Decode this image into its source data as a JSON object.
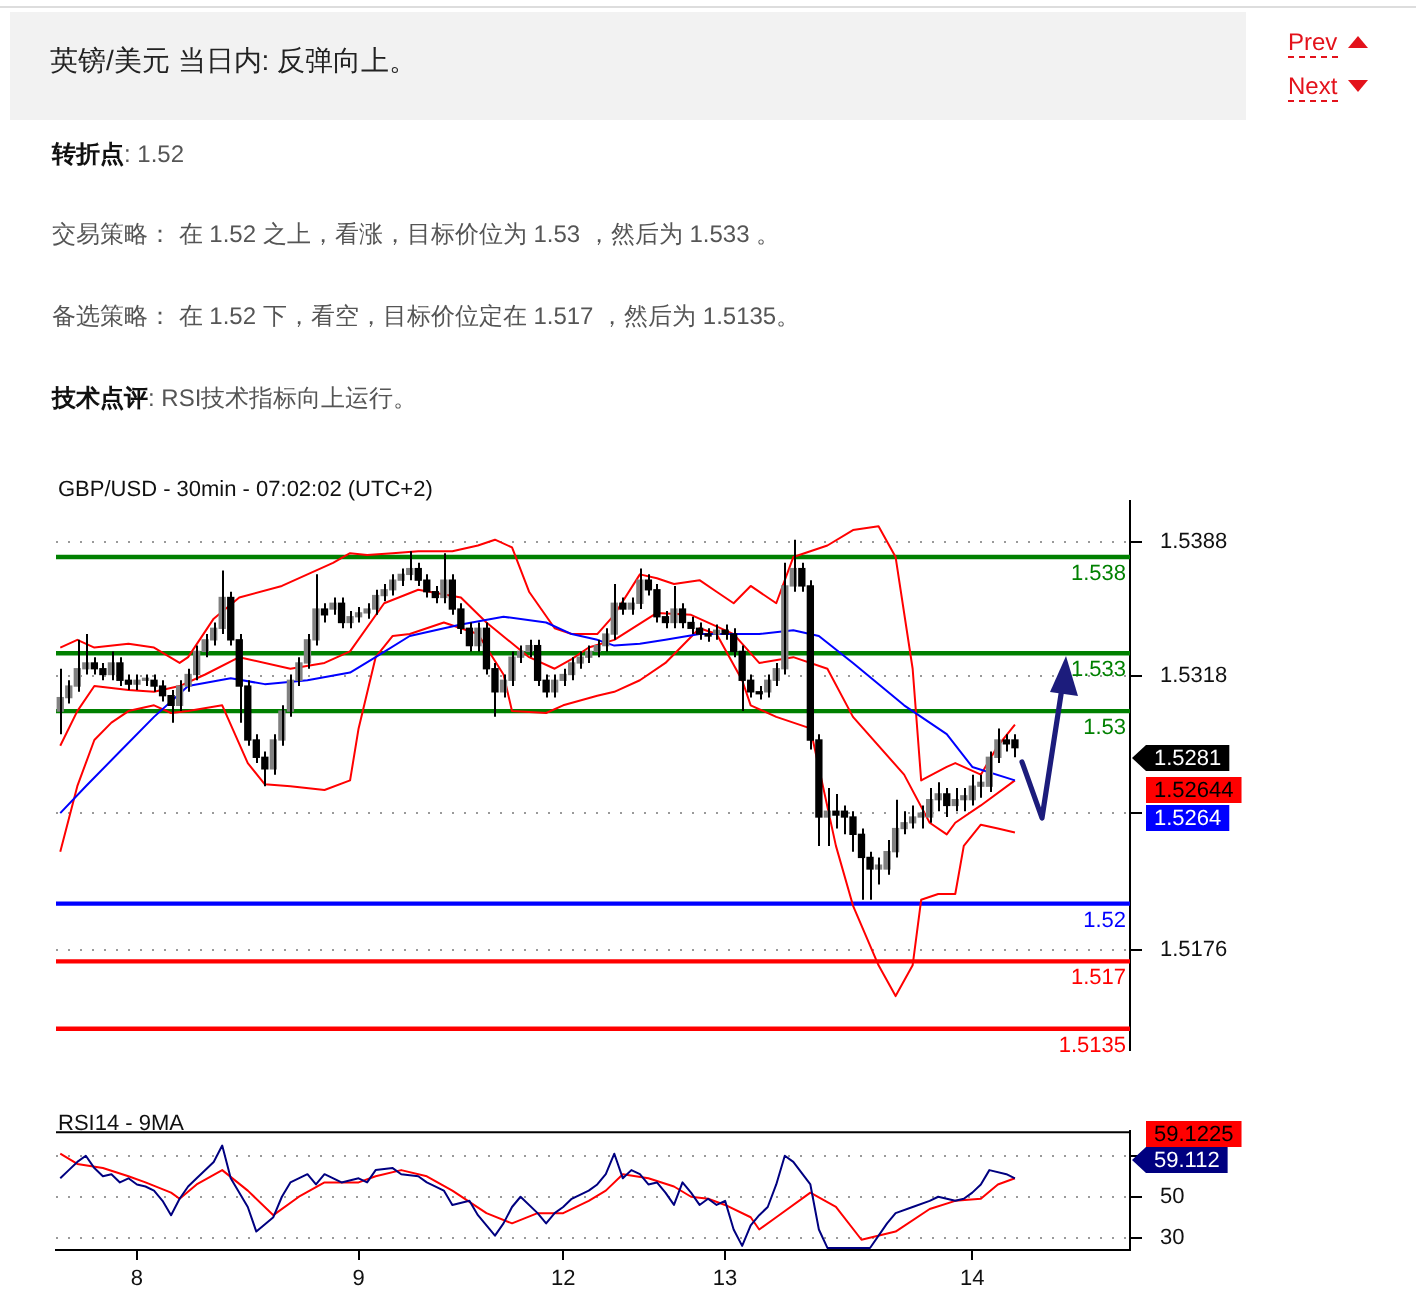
{
  "chart_data": [
    {
      "type": "candlestick",
      "title": "英镑/美元 当日内: 反弹向上。",
      "subtitle": "GBP/USD - 30min - 07:02:02 (UTC+2)",
      "annotations": [
        "Prev",
        "Next",
        "转折点: 1.52",
        "交易策略： 在 1.52 之上，看涨，目标价位为 1.53 ，然后为 1.533 。",
        "备选策略： 在 1.52 下，看空，目标价位定在 1.517 ，然后为 1.5135。",
        "技术点评: RSI技术指标向上运行。",
        "1.5281",
        "1.52644",
        "1.5264"
      ],
      "color": "#000000",
      "colors": [
        "#808080",
        "#808080",
        "#808080",
        "#808080",
        "#000000",
        "#000000",
        "#808080",
        "#000000",
        "#000000",
        "#808080",
        "#808080",
        "#000000",
        "#000000",
        "#000000",
        "#808080",
        "#808080",
        "#808080",
        "#808080",
        "#808080",
        "#808080",
        "#000000",
        "#000000",
        "#000000",
        "#000000",
        "#000000",
        "#808080",
        "#808080",
        "#808080",
        "#808080",
        "#808080",
        "#808080",
        "#000000",
        "#808080",
        "#000000",
        "#808080",
        "#808080",
        "#808080",
        "#808080",
        "#808080",
        "#808080",
        "#808080",
        "#808080",
        "#000000",
        "#000000",
        "#000000",
        "#808080",
        "#000000",
        "#000000",
        "#000000",
        "#808080",
        "#000000",
        "#000000",
        "#808080",
        "#808080",
        "#808080",
        "#808080",
        "#000000",
        "#000000",
        "#808080",
        "#808080",
        "#808080",
        "#808080",
        "#808080",
        "#808080",
        "#808080",
        "#808080",
        "#000000",
        "#808080",
        "#808080",
        "#000000",
        "#000000",
        "#000000",
        "#808080",
        "#000000",
        "#000000",
        "#000000",
        "#000000",
        "#808080",
        "#000000",
        "#000000",
        "#000000",
        "#000000",
        "#000000",
        "#808080",
        "#808080",
        "#808080",
        "#808080",
        "#000000",
        "#000000",
        "#000000",
        "#808080",
        "#000000",
        "#000000",
        "#000000",
        "#000000",
        "#000000",
        "#808080",
        "#808080",
        "#808080",
        "#808080",
        "#808080",
        "#808080",
        "#808080",
        "#808080",
        "#000000",
        "#808080",
        "#808080",
        "#808080",
        "#808080",
        "#808080",
        "#808080",
        "#000000",
        "#000000",
        null,
        null,
        null,
        null,
        null,
        null,
        null,
        null,
        null,
        null,
        null,
        null,
        null
      ],
      "categories": [
        null,
        null,
        null,
        null,
        null,
        null,
        null,
        null,
        null,
        "8",
        null,
        null,
        null,
        null,
        null,
        null,
        null,
        null,
        null,
        null,
        null,
        null,
        null,
        null,
        null,
        null,
        null,
        null,
        null,
        null,
        null,
        null,
        null,
        null,
        null,
        "9",
        null,
        null,
        null,
        null,
        null,
        null,
        null,
        null,
        null,
        null,
        null,
        null,
        null,
        null,
        null,
        null,
        null,
        null,
        null,
        null,
        null,
        null,
        null,
        "12",
        null,
        null,
        null,
        null,
        null,
        null,
        null,
        null,
        null,
        null,
        null,
        null,
        null,
        null,
        null,
        null,
        null,
        null,
        "13",
        null,
        null,
        null,
        null,
        null,
        null,
        null,
        null,
        null,
        null,
        null,
        null,
        null,
        null,
        null,
        null,
        null,
        null,
        null,
        null,
        null,
        null,
        null,
        null,
        null,
        null,
        null,
        null,
        "14",
        null,
        null,
        null,
        null,
        null,
        null,
        null,
        null,
        null,
        null,
        null,
        null,
        null,
        null,
        null,
        null,
        null,
        null
      ],
      "ohlc": [
        [
          1.53,
          1.5322,
          1.5288,
          1.5307
        ],
        [
          1.5307,
          1.5316,
          1.5304,
          1.5313
        ],
        [
          1.5313,
          1.5337,
          1.531,
          1.5322
        ],
        [
          1.5322,
          1.534,
          1.5319,
          1.5325
        ],
        [
          1.5325,
          1.5328,
          1.5319,
          1.5322
        ],
        [
          1.5322,
          1.5325,
          1.5316,
          1.5319
        ],
        [
          1.5319,
          1.5331,
          1.5316,
          1.5325
        ],
        [
          1.5325,
          1.5328,
          1.5313,
          1.5316
        ],
        [
          1.5316,
          1.5319,
          1.5311,
          1.5314
        ],
        [
          1.5314,
          1.5319,
          1.5311,
          1.5316
        ],
        [
          1.5316,
          1.5319,
          1.5313,
          1.5317
        ],
        [
          1.5316,
          1.5319,
          1.531,
          1.5313
        ],
        [
          1.5313,
          1.5316,
          1.5305,
          1.5308
        ],
        [
          1.5308,
          1.5311,
          1.5294,
          1.5303
        ],
        [
          1.5303,
          1.5316,
          1.53,
          1.5313
        ],
        [
          1.5313,
          1.5322,
          1.531,
          1.5319
        ],
        [
          1.5319,
          1.5334,
          1.5316,
          1.5331
        ],
        [
          1.5331,
          1.534,
          1.5328,
          1.5337
        ],
        [
          1.5337,
          1.5346,
          1.5334,
          1.5343
        ],
        [
          1.5343,
          1.5373,
          1.534,
          1.5359
        ],
        [
          1.5359,
          1.5362,
          1.5334,
          1.5337
        ],
        [
          1.5337,
          1.534,
          1.5294,
          1.5313
        ],
        [
          1.5313,
          1.5316,
          1.5282,
          1.5285
        ],
        [
          1.5285,
          1.5288,
          1.5273,
          1.5276
        ],
        [
          1.5276,
          1.5279,
          1.5261,
          1.527
        ],
        [
          1.527,
          1.5288,
          1.5267,
          1.5285
        ],
        [
          1.5285,
          1.5303,
          1.5282,
          1.53
        ],
        [
          1.53,
          1.5319,
          1.5297,
          1.5316
        ],
        [
          1.5316,
          1.5328,
          1.5313,
          1.5325
        ],
        [
          1.5325,
          1.534,
          1.5322,
          1.5337
        ],
        [
          1.5337,
          1.5371,
          1.5334,
          1.5353
        ],
        [
          1.5353,
          1.5356,
          1.5346,
          1.535
        ],
        [
          1.5353,
          1.5359,
          1.535,
          1.5356
        ],
        [
          1.5356,
          1.5359,
          1.5343,
          1.5346
        ],
        [
          1.5346,
          1.5352,
          1.5343,
          1.5349
        ],
        [
          1.5349,
          1.5354,
          1.5346,
          1.5351
        ],
        [
          1.5351,
          1.5356,
          1.5348,
          1.5353
        ],
        [
          1.5353,
          1.5363,
          1.535,
          1.536
        ],
        [
          1.536,
          1.5366,
          1.5357,
          1.5363
        ],
        [
          1.5363,
          1.5371,
          1.536,
          1.5368
        ],
        [
          1.5368,
          1.5374,
          1.5365,
          1.5371
        ],
        [
          1.5371,
          1.5383,
          1.5368,
          1.5374
        ],
        [
          1.5374,
          1.5377,
          1.5365,
          1.5368
        ],
        [
          1.5368,
          1.5371,
          1.5359,
          1.5362
        ],
        [
          1.5362,
          1.5365,
          1.5356,
          1.5359
        ],
        [
          1.5359,
          1.5382,
          1.5356,
          1.5368
        ],
        [
          1.5368,
          1.5371,
          1.535,
          1.5353
        ],
        [
          1.5353,
          1.5356,
          1.534,
          1.5343
        ],
        [
          1.5343,
          1.5346,
          1.5331,
          1.5334
        ],
        [
          1.5334,
          1.5346,
          1.5331,
          1.5343
        ],
        [
          1.5343,
          1.5346,
          1.5319,
          1.5322
        ],
        [
          1.5322,
          1.5325,
          1.5297,
          1.531
        ],
        [
          1.531,
          1.5319,
          1.5307,
          1.5316
        ],
        [
          1.5316,
          1.5331,
          1.5313,
          1.5328
        ],
        [
          1.5328,
          1.5334,
          1.5325,
          1.5331
        ],
        [
          1.5331,
          1.5337,
          1.5328,
          1.5334
        ],
        [
          1.5334,
          1.5337,
          1.5313,
          1.5316
        ],
        [
          1.5316,
          1.5319,
          1.5307,
          1.531
        ],
        [
          1.531,
          1.5319,
          1.5307,
          1.5316
        ],
        [
          1.5316,
          1.5322,
          1.5313,
          1.5319
        ],
        [
          1.5319,
          1.5328,
          1.5316,
          1.5325
        ],
        [
          1.5325,
          1.5331,
          1.5322,
          1.5328
        ],
        [
          1.5328,
          1.5334,
          1.5325,
          1.5331
        ],
        [
          1.5331,
          1.5337,
          1.5328,
          1.5334
        ],
        [
          1.5334,
          1.5343,
          1.5331,
          1.534
        ],
        [
          1.534,
          1.5366,
          1.5337,
          1.5356
        ],
        [
          1.5356,
          1.5359,
          1.535,
          1.5353
        ],
        [
          1.5353,
          1.5359,
          1.535,
          1.5356
        ],
        [
          1.5356,
          1.5374,
          1.5353,
          1.5368
        ],
        [
          1.5368,
          1.5371,
          1.536,
          1.5363
        ],
        [
          1.5363,
          1.5366,
          1.5346,
          1.5349
        ],
        [
          1.5349,
          1.5352,
          1.5343,
          1.5346
        ],
        [
          1.5346,
          1.5365,
          1.5343,
          1.5353
        ],
        [
          1.5353,
          1.5356,
          1.5343,
          1.5346
        ],
        [
          1.5346,
          1.5349,
          1.534,
          1.5343
        ],
        [
          1.5343,
          1.5346,
          1.5337,
          1.534
        ],
        [
          1.534,
          1.5343,
          1.5336,
          1.5339
        ],
        [
          1.534,
          1.5345,
          1.5337,
          1.5342
        ],
        [
          1.5342,
          1.5345,
          1.5337,
          1.534
        ],
        [
          1.534,
          1.5343,
          1.5328,
          1.5331
        ],
        [
          1.5331,
          1.5334,
          1.53,
          1.5316
        ],
        [
          1.5316,
          1.5319,
          1.5307,
          1.531
        ],
        [
          1.531,
          1.5313,
          1.5306,
          1.5309
        ],
        [
          1.531,
          1.5319,
          1.5307,
          1.5316
        ],
        [
          1.5316,
          1.5325,
          1.5313,
          1.5322
        ],
        [
          1.5322,
          1.5377,
          1.5319,
          1.5365
        ],
        [
          1.5365,
          1.5389,
          1.5362,
          1.5374
        ],
        [
          1.5374,
          1.5377,
          1.5362,
          1.5365
        ],
        [
          1.5365,
          1.5368,
          1.528,
          1.5285
        ],
        [
          1.5285,
          1.5288,
          1.523,
          1.5245
        ],
        [
          1.5245,
          1.526,
          1.523,
          1.5248
        ],
        [
          1.5248,
          1.5257,
          1.5239,
          1.5246
        ],
        [
          1.5248,
          1.5251,
          1.5236,
          1.5245
        ],
        [
          1.5245,
          1.5248,
          1.5227,
          1.5236
        ],
        [
          1.5236,
          1.5239,
          1.5202,
          1.5224
        ],
        [
          1.5224,
          1.5227,
          1.5202,
          1.5218
        ],
        [
          1.5218,
          1.5224,
          1.521,
          1.522
        ],
        [
          1.5218,
          1.5233,
          1.5215,
          1.5227
        ],
        [
          1.5227,
          1.5254,
          1.5224,
          1.5239
        ],
        [
          1.5239,
          1.5248,
          1.5236,
          1.5242
        ],
        [
          1.5242,
          1.5251,
          1.5239,
          1.5245
        ],
        [
          1.5245,
          1.5251,
          1.5239,
          1.5247
        ],
        [
          1.5245,
          1.526,
          1.5242,
          1.5254
        ],
        [
          1.5254,
          1.5263,
          1.5248,
          1.5257
        ],
        [
          1.5257,
          1.526,
          1.5245,
          1.5251
        ],
        [
          1.5251,
          1.526,
          1.5248,
          1.5254
        ],
        [
          1.5254,
          1.526,
          1.5248,
          1.5256
        ],
        [
          1.5254,
          1.5267,
          1.5251,
          1.5261
        ],
        [
          1.5261,
          1.5267,
          1.5255,
          1.5263
        ],
        [
          1.5261,
          1.5279,
          1.5258,
          1.5276
        ],
        [
          1.5276,
          1.5291,
          1.5273,
          1.5285
        ],
        [
          1.5285,
          1.5288,
          1.5279,
          1.5283
        ],
        [
          1.5285,
          1.5288,
          1.5276,
          1.5281
        ],
        null,
        null,
        null,
        null,
        null,
        null,
        null,
        null,
        null,
        null,
        null,
        null,
        null
      ],
      "series": [
        {
          "type": "line",
          "color": "#0000ff",
          "values": [
            1.5247,
            null,
            null,
            1.5261,
            null,
            null,
            null,
            1.5279,
            null,
            null,
            null,
            1.5297,
            null,
            null,
            null,
            1.5313,
            null,
            null,
            null,
            null,
            1.5317,
            null,
            null,
            null,
            1.5314,
            null,
            null,
            null,
            null,
            1.5316,
            null,
            null,
            null,
            null,
            1.532,
            null,
            null,
            1.5328,
            null,
            null,
            null,
            1.5339,
            null,
            null,
            null,
            null,
            null,
            1.5345,
            null,
            null,
            null,
            null,
            1.5349,
            null,
            null,
            null,
            null,
            1.5346,
            null,
            null,
            1.534,
            null,
            null,
            1.5337,
            null,
            1.5334,
            null,
            null,
            1.5335,
            null,
            null,
            1.5337,
            null,
            null,
            null,
            1.534,
            null,
            null,
            1.534,
            null,
            null,
            null,
            1.534,
            null,
            null,
            null,
            1.5342,
            null,
            null,
            1.5339,
            null,
            null,
            null,
            1.5325,
            null,
            null,
            null,
            null,
            null,
            1.5303,
            null,
            null,
            null,
            null,
            1.5288,
            null,
            null,
            1.5271,
            null,
            null,
            null,
            null,
            1.5264,
            null,
            null,
            null,
            null,
            null,
            null,
            null,
            null,
            null,
            null,
            null,
            null,
            null
          ]
        },
        {
          "type": "line",
          "color": "#ff0000",
          "values": [
            1.5333,
            null,
            1.5337,
            null,
            1.5333,
            null,
            null,
            null,
            1.5335,
            null,
            null,
            1.5333,
            null,
            null,
            1.5325,
            1.5328,
            null,
            null,
            1.5348,
            null,
            null,
            1.5359,
            null,
            null,
            null,
            null,
            1.5365,
            null,
            null,
            1.5371,
            null,
            null,
            1.5377,
            null,
            1.5382,
            null,
            1.5381,
            null,
            null,
            1.5382,
            null,
            null,
            1.5383,
            null,
            null,
            null,
            1.5383,
            null,
            null,
            1.5386,
            null,
            1.5389,
            null,
            1.5385,
            null,
            1.5362,
            null,
            null,
            1.5343,
            null,
            1.534,
            null,
            null,
            1.534,
            null,
            1.535,
            null,
            null,
            1.5371,
            null,
            1.5369,
            null,
            1.5366,
            null,
            null,
            1.5368,
            null,
            1.5362,
            null,
            1.5356,
            null,
            1.5365,
            null,
            null,
            1.5356,
            null,
            1.538,
            null,
            null,
            null,
            1.5386,
            null,
            null,
            1.5394,
            null,
            null,
            1.5396,
            null,
            1.538,
            null,
            1.5322,
            1.5264,
            null,
            null,
            1.5271,
            1.5273,
            null,
            null,
            1.5267,
            null,
            1.5282,
            null,
            1.5293,
            null,
            null,
            null,
            null,
            null,
            null,
            null,
            null,
            null,
            null,
            null,
            null,
            null
          ]
        },
        {
          "type": "line",
          "color": "#ff0000",
          "values": [
            1.5227,
            null,
            1.5261,
            null,
            1.5285,
            null,
            1.5294,
            null,
            1.53,
            null,
            null,
            1.5303,
            null,
            1.5299,
            null,
            1.53,
            null,
            null,
            null,
            1.5303,
            null,
            null,
            1.5273,
            null,
            1.5262,
            null,
            null,
            1.5261,
            null,
            null,
            null,
            1.5259,
            null,
            null,
            1.5264,
            1.5291,
            null,
            1.5328,
            null,
            1.5339,
            null,
            1.534,
            null,
            null,
            null,
            1.5346,
            null,
            null,
            null,
            1.534,
            null,
            null,
            1.5319,
            1.53,
            null,
            null,
            null,
            1.5299,
            null,
            1.5303,
            null,
            null,
            null,
            1.5308,
            null,
            1.531,
            null,
            null,
            1.5316,
            null,
            null,
            1.5325,
            null,
            null,
            null,
            1.5343,
            null,
            1.534,
            null,
            null,
            1.5316,
            1.5303,
            null,
            null,
            1.5297,
            null,
            null,
            null,
            1.5291,
            null,
            null,
            1.523,
            null,
            1.5199,
            null,
            null,
            1.5168,
            null,
            1.5152,
            null,
            1.5168,
            1.5202,
            null,
            1.5205,
            null,
            1.5205,
            1.523,
            null,
            1.5241,
            null,
            1.5239,
            null,
            1.5237,
            null,
            null,
            null,
            null,
            null,
            null,
            null,
            null,
            null,
            null,
            null,
            null,
            null
          ]
        },
        {
          "type": "line",
          "color": "#ff0000",
          "values": [
            1.5282,
            null,
            1.53,
            null,
            1.5313,
            null,
            null,
            null,
            1.5311,
            null,
            null,
            1.531,
            null,
            null,
            1.5313,
            null,
            null,
            1.5319,
            null,
            null,
            null,
            1.5328,
            null,
            null,
            null,
            null,
            null,
            1.5322,
            null,
            null,
            null,
            1.5325,
            null,
            null,
            1.5331,
            null,
            null,
            null,
            1.5356,
            null,
            null,
            null,
            1.5363,
            null,
            null,
            null,
            null,
            1.5359,
            null,
            null,
            1.5346,
            null,
            null,
            null,
            null,
            1.5328,
            null,
            null,
            1.5322,
            null,
            1.5327,
            null,
            1.5333,
            null,
            null,
            1.5337,
            null,
            null,
            null,
            null,
            1.5351,
            null,
            null,
            null,
            1.535,
            null,
            null,
            null,
            null,
            1.534,
            null,
            null,
            1.5325,
            null,
            null,
            null,
            1.5328,
            null,
            null,
            null,
            1.5322,
            null,
            null,
            1.5297,
            null,
            null,
            null,
            null,
            null,
            1.5267,
            null,
            null,
            1.5242,
            null,
            1.5236,
            1.5242,
            null,
            null,
            1.5251,
            null,
            null,
            null,
            1.5264,
            null,
            null,
            null,
            null,
            null,
            null,
            null,
            null,
            null,
            null,
            null,
            null,
            null
          ]
        }
      ],
      "ref_lines": [
        {
          "axis": "y",
          "value": 1.538,
          "label": "1.538",
          "color": "#008000"
        },
        {
          "axis": "y",
          "value": 1.533,
          "label": "1.533",
          "color": "#008000"
        },
        {
          "axis": "y",
          "value": 1.53,
          "label": "1.53",
          "color": "#008000"
        },
        {
          "axis": "y",
          "value": 1.52,
          "label": "1.52",
          "color": "#0000ff"
        },
        {
          "axis": "y",
          "value": 1.517,
          "label": "1.517",
          "color": "#ff0000"
        },
        {
          "axis": "y",
          "value": 1.5135,
          "label": "1.5135",
          "color": "#ff0000"
        }
      ],
      "ylim": [
        1.5124,
        1.5409
      ],
      "yticks": [
        1.5176,
        {
          "value": 1.5247,
          "label": null
        },
        1.5318,
        1.5388
      ],
      "tick_labels": "y",
      "grid": "y"
    },
    {
      "type": "line",
      "title": "RSI14 - 9MA",
      "annotations": [
        "59.1225",
        "59.112"
      ],
      "categories": [
        null,
        null,
        null,
        null,
        null,
        null,
        null,
        null,
        null,
        "8",
        null,
        null,
        null,
        null,
        null,
        null,
        null,
        null,
        null,
        null,
        null,
        null,
        null,
        null,
        null,
        null,
        null,
        null,
        null,
        null,
        null,
        null,
        null,
        null,
        null,
        "9",
        null,
        null,
        null,
        null,
        null,
        null,
        null,
        null,
        null,
        null,
        null,
        null,
        null,
        null,
        null,
        null,
        null,
        null,
        null,
        null,
        null,
        null,
        null,
        "12",
        null,
        null,
        null,
        null,
        null,
        null,
        null,
        null,
        null,
        null,
        null,
        null,
        null,
        null,
        null,
        null,
        null,
        null,
        "13",
        null,
        null,
        null,
        null,
        null,
        null,
        null,
        null,
        null,
        null,
        null,
        null,
        null,
        null,
        null,
        null,
        null,
        null,
        null,
        null,
        null,
        null,
        null,
        null,
        null,
        null,
        null,
        null,
        "14",
        null,
        null,
        null,
        null,
        null,
        null,
        null,
        null,
        null,
        null,
        null,
        null,
        null,
        null,
        null,
        null,
        null,
        null
      ],
      "series": [
        {
          "color": "#000080",
          "values": [
            59,
            63,
            67,
            70,
            64,
            60,
            61,
            57,
            59,
            56,
            55,
            53,
            48,
            41,
            49,
            55,
            59,
            null,
            67,
            75,
            59,
            null,
            45,
            33,
            null,
            40,
            50,
            57,
            null,
            61,
            56,
            61,
            null,
            57,
            null,
            59,
            57,
            63,
            null,
            64,
            61,
            null,
            60,
            57,
            null,
            53,
            46,
            null,
            48,
            41,
            null,
            31,
            37,
            45,
            50,
            null,
            42,
            37,
            42,
            45,
            49,
            null,
            53,
            56,
            61,
            71,
            59,
            63,
            61,
            56,
            57,
            52,
            46,
            57,
            52,
            46,
            49,
            46,
            48,
            34,
            26,
            36,
            41,
            45,
            56,
            70,
            67,
            null,
            56,
            34,
            25,
            null,
            25,
            null,
            25,
            25,
            null,
            37,
            42,
            null,
            45,
            null,
            48,
            50,
            null,
            48,
            49,
            52,
            56,
            63,
            null,
            61,
            59,
            null,
            null,
            null,
            null,
            null,
            null,
            null,
            null,
            null,
            null,
            null,
            null,
            null
          ]
        },
        {
          "color": "#ff0000",
          "values": [
            71,
            null,
            66,
            null,
            null,
            64,
            null,
            null,
            60,
            null,
            57,
            null,
            null,
            52,
            49,
            null,
            56,
            null,
            null,
            63,
            null,
            null,
            53,
            null,
            null,
            41,
            null,
            null,
            50,
            null,
            null,
            57,
            null,
            null,
            null,
            57,
            null,
            60,
            null,
            null,
            63,
            null,
            null,
            60,
            null,
            null,
            53,
            null,
            null,
            null,
            42,
            null,
            null,
            37,
            null,
            null,
            42,
            null,
            null,
            42,
            null,
            null,
            48,
            null,
            53,
            null,
            61,
            null,
            null,
            59,
            null,
            null,
            55,
            null,
            50,
            null,
            49,
            null,
            46,
            null,
            null,
            40,
            34,
            null,
            40,
            null,
            null,
            null,
            52,
            null,
            null,
            45,
            null,
            null,
            29,
            null,
            null,
            null,
            33,
            null,
            null,
            null,
            44,
            null,
            null,
            48,
            null,
            null,
            49,
            null,
            56,
            null,
            59,
            null,
            null,
            null,
            null,
            null,
            null,
            null,
            null,
            null,
            null,
            null,
            null,
            null
          ]
        }
      ],
      "ylim": [
        24,
        82
      ],
      "yticks": [
        {
          "value": 70,
          "label": null
        },
        50,
        30
      ],
      "grid": "y"
    }
  ]
}
